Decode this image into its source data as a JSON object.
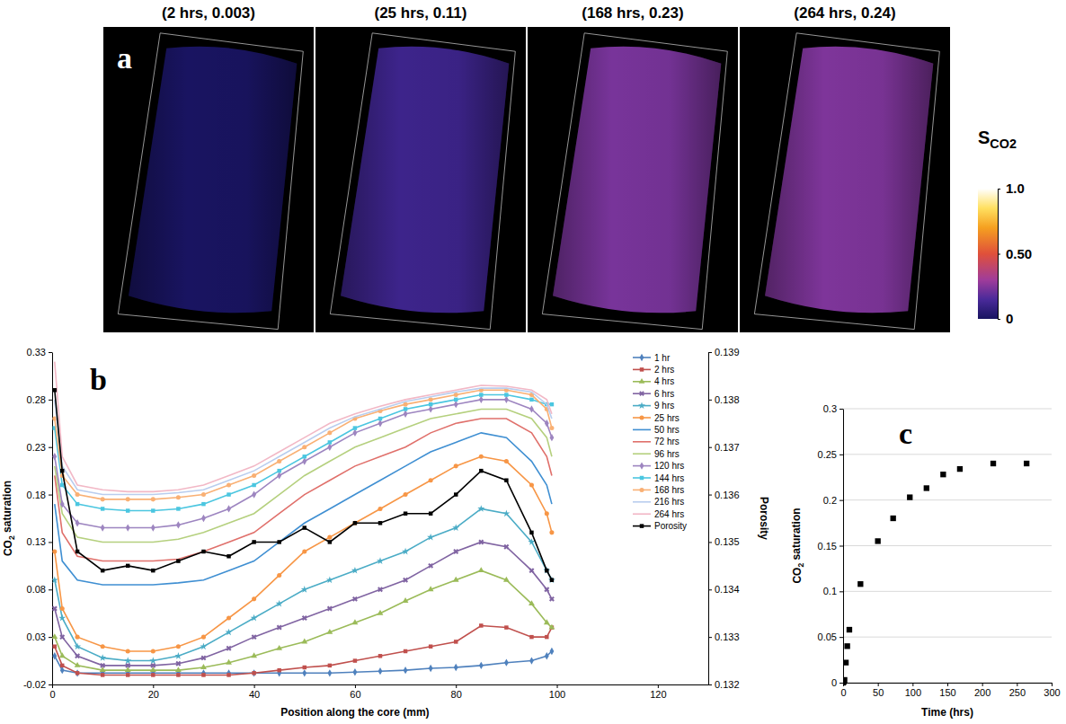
{
  "chart_data": [
    {
      "type": "image",
      "panel_label": "a",
      "panels": [
        {
          "title": "(2 hrs, 0.003)",
          "saturation": 0.003
        },
        {
          "title": "(25 hrs, 0.11)",
          "saturation": 0.11
        },
        {
          "title": "(168 hrs, 0.23)",
          "saturation": 0.23
        },
        {
          "title": "(264 hrs, 0.24)",
          "saturation": 0.24
        }
      ],
      "colorbar": {
        "label": "SCO2",
        "range": [
          0,
          1
        ],
        "ticks": [
          0,
          {
            "value": 0.5,
            "label": "0.50"
          },
          {
            "value": 1,
            "label": "1.0"
          }
        ]
      }
    },
    {
      "type": "line",
      "panel_label": "b",
      "xlabel": "Position along the core (mm)",
      "ylabel": "CO2 saturation",
      "y2label": "Porosity",
      "x": [
        0.5,
        2,
        5,
        10,
        15,
        20,
        25,
        30,
        35,
        40,
        45,
        50,
        55,
        60,
        65,
        70,
        75,
        80,
        85,
        90,
        95,
        98,
        99
      ],
      "xlim": [
        0,
        130
      ],
      "xticks": [
        0,
        20,
        40,
        60,
        80,
        100,
        120
      ],
      "ylim": [
        -0.02,
        0.33
      ],
      "yticks": [
        -0.02,
        0.03,
        0.08,
        0.13,
        0.18,
        0.23,
        0.28,
        0.33
      ],
      "y2lim": [
        0.132,
        0.139
      ],
      "y2ticks": [
        0.132,
        0.133,
        0.134,
        0.135,
        0.136,
        0.137,
        0.138,
        0.139
      ],
      "legend": "right",
      "grid": false,
      "series": [
        {
          "name": "1 hr",
          "color": "#4f81bd",
          "marker": "diamond",
          "values": [
            0.01,
            -0.005,
            -0.008,
            -0.008,
            -0.008,
            -0.008,
            -0.008,
            -0.008,
            -0.008,
            -0.008,
            -0.008,
            -0.008,
            -0.008,
            -0.007,
            -0.006,
            -0.005,
            -0.003,
            -0.002,
            0,
            0.003,
            0.005,
            0.01,
            0.015
          ]
        },
        {
          "name": "2 hrs",
          "color": "#c0504d",
          "marker": "square",
          "values": [
            0.02,
            0,
            -0.008,
            -0.01,
            -0.01,
            -0.01,
            -0.01,
            -0.01,
            -0.01,
            -0.008,
            -0.005,
            -0.002,
            0,
            0.005,
            0.01,
            0.015,
            0.02,
            0.025,
            0.042,
            0.04,
            0.03,
            0.03,
            0.04
          ]
        },
        {
          "name": "4 hrs",
          "color": "#9bbb59",
          "marker": "triangle",
          "values": [
            0.03,
            0.01,
            0,
            -0.005,
            -0.005,
            -0.005,
            -0.005,
            -0.002,
            0.003,
            0.01,
            0.018,
            0.025,
            0.035,
            0.045,
            0.055,
            0.068,
            0.08,
            0.09,
            0.1,
            0.09,
            0.065,
            0.045,
            0.04
          ]
        },
        {
          "name": "6 hrs",
          "color": "#8064a2",
          "marker": "x",
          "values": [
            0.06,
            0.03,
            0.01,
            0,
            0,
            0,
            0.002,
            0.008,
            0.018,
            0.03,
            0.04,
            0.05,
            0.06,
            0.07,
            0.08,
            0.09,
            0.105,
            0.12,
            0.13,
            0.125,
            0.1,
            0.08,
            0.07
          ]
        },
        {
          "name": "9 hrs",
          "color": "#4bacc6",
          "marker": "star",
          "values": [
            0.09,
            0.05,
            0.02,
            0.008,
            0.005,
            0.005,
            0.01,
            0.02,
            0.035,
            0.05,
            0.065,
            0.08,
            0.09,
            0.1,
            0.11,
            0.12,
            0.135,
            0.145,
            0.165,
            0.16,
            0.13,
            0.1,
            0.09
          ]
        },
        {
          "name": "25 hrs",
          "color": "#f79646",
          "marker": "circle",
          "values": [
            0.12,
            0.06,
            0.03,
            0.02,
            0.015,
            0.015,
            0.02,
            0.03,
            0.05,
            0.07,
            0.095,
            0.12,
            0.135,
            0.15,
            0.165,
            0.18,
            0.195,
            0.21,
            0.22,
            0.215,
            0.19,
            0.16,
            0.14
          ]
        },
        {
          "name": "50 hrs",
          "color": "#3f8fd2",
          "marker": "none",
          "values": [
            0.17,
            0.11,
            0.09,
            0.085,
            0.085,
            0.085,
            0.087,
            0.09,
            0.1,
            0.11,
            0.13,
            0.15,
            0.165,
            0.18,
            0.195,
            0.21,
            0.225,
            0.235,
            0.245,
            0.24,
            0.215,
            0.19,
            0.17
          ]
        },
        {
          "name": "72 hrs",
          "color": "#e0706b",
          "marker": "none",
          "values": [
            0.2,
            0.14,
            0.115,
            0.11,
            0.11,
            0.11,
            0.112,
            0.12,
            0.13,
            0.14,
            0.16,
            0.18,
            0.195,
            0.21,
            0.22,
            0.23,
            0.245,
            0.255,
            0.26,
            0.26,
            0.245,
            0.22,
            0.2
          ]
        },
        {
          "name": "96 hrs",
          "color": "#b5d07e",
          "marker": "none",
          "values": [
            0.21,
            0.16,
            0.135,
            0.13,
            0.13,
            0.13,
            0.133,
            0.14,
            0.15,
            0.16,
            0.18,
            0.2,
            0.215,
            0.23,
            0.24,
            0.25,
            0.26,
            0.265,
            0.27,
            0.27,
            0.26,
            0.24,
            0.22
          ]
        },
        {
          "name": "120 hrs",
          "color": "#9d85c0",
          "marker": "diamond",
          "values": [
            0.22,
            0.17,
            0.15,
            0.145,
            0.145,
            0.145,
            0.148,
            0.155,
            0.165,
            0.18,
            0.2,
            0.215,
            0.23,
            0.245,
            0.255,
            0.265,
            0.27,
            0.275,
            0.28,
            0.28,
            0.27,
            0.255,
            0.24
          ]
        },
        {
          "name": "144 hrs",
          "color": "#4bc6e0",
          "marker": "square",
          "values": [
            0.25,
            0.19,
            0.17,
            0.165,
            0.163,
            0.163,
            0.165,
            0.17,
            0.18,
            0.19,
            0.205,
            0.22,
            0.235,
            0.25,
            0.26,
            0.27,
            0.275,
            0.28,
            0.285,
            0.285,
            0.28,
            0.275,
            0.275
          ]
        },
        {
          "name": "168 hrs",
          "color": "#f9b074",
          "marker": "circle",
          "values": [
            0.26,
            0.2,
            0.18,
            0.175,
            0.175,
            0.175,
            0.177,
            0.18,
            0.19,
            0.2,
            0.215,
            0.23,
            0.245,
            0.26,
            0.268,
            0.275,
            0.28,
            0.285,
            0.29,
            0.29,
            0.285,
            0.27,
            0.25
          ]
        },
        {
          "name": "216 hrs",
          "color": "#b9cdee",
          "marker": "none",
          "values": [
            0.28,
            0.21,
            0.185,
            0.18,
            0.18,
            0.18,
            0.182,
            0.185,
            0.195,
            0.205,
            0.22,
            0.235,
            0.25,
            0.262,
            0.27,
            0.278,
            0.283,
            0.288,
            0.292,
            0.292,
            0.288,
            0.275,
            0.26
          ]
        },
        {
          "name": "264 hrs",
          "color": "#f2b8c6",
          "marker": "none",
          "values": [
            0.32,
            0.22,
            0.19,
            0.185,
            0.183,
            0.183,
            0.185,
            0.19,
            0.2,
            0.21,
            0.225,
            0.24,
            0.255,
            0.265,
            0.273,
            0.28,
            0.285,
            0.29,
            0.295,
            0.294,
            0.29,
            0.28,
            0.265
          ]
        },
        {
          "name": "Porosity",
          "color": "#000000",
          "marker": "square",
          "axis": "y2",
          "values": [
            0.1382,
            0.1365,
            0.1348,
            0.1344,
            0.1345,
            0.1344,
            0.1346,
            0.1348,
            0.1347,
            0.135,
            0.135,
            0.1353,
            0.135,
            0.1354,
            0.1354,
            0.1356,
            0.1356,
            0.136,
            0.1365,
            0.1363,
            0.1352,
            0.1344,
            0.1342
          ]
        }
      ]
    },
    {
      "type": "scatter",
      "panel_label": "c",
      "xlabel": "Time (hrs)",
      "ylabel": "CO2 saturation",
      "x": [
        0,
        1,
        2,
        4,
        6,
        9,
        25,
        50,
        72,
        96,
        120,
        144,
        168,
        216,
        264
      ],
      "values": [
        0,
        0.001,
        0.003,
        0.022,
        0.04,
        0.058,
        0.108,
        0.155,
        0.18,
        0.203,
        0.213,
        0.228,
        0.234,
        0.24,
        0.24
      ],
      "color": "#000000",
      "marker": "square",
      "xlim": [
        0,
        300
      ],
      "xticks": [
        0,
        50,
        100,
        150,
        200,
        250,
        300
      ],
      "ylim": [
        0,
        0.3
      ],
      "yticks": [
        0,
        0.05,
        0.1,
        0.15,
        0.2,
        0.25,
        0.3
      ],
      "grid": true
    }
  ]
}
